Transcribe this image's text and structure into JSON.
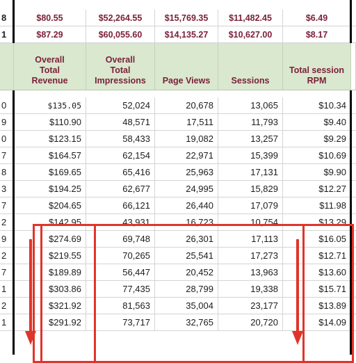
{
  "top_rows": [
    {
      "row_label": "8",
      "values": [
        "$80.55",
        "$52,264.55",
        "$15,769.35",
        "$11,482.45",
        "$6.49"
      ]
    },
    {
      "row_label": "1",
      "values": [
        "$87.29",
        "$60,055.60",
        "$14,135.27",
        "$10,627.00",
        "$8.17"
      ]
    }
  ],
  "headers": [
    "Overall\nTotal\nRevenue",
    "Overall\nTotal\nImpressions",
    "Page Views",
    "Sessions",
    "Total session\nRPM"
  ],
  "rows": [
    {
      "row_label": "0",
      "values": [
        "$135.05",
        "52,024",
        "20,678",
        "13,065",
        "$10.34"
      ]
    },
    {
      "row_label": "9",
      "values": [
        "$110.90",
        "48,571",
        "17,511",
        "11,793",
        "$9.40"
      ]
    },
    {
      "row_label": "0",
      "values": [
        "$123.15",
        "58,433",
        "19,082",
        "13,257",
        "$9.29"
      ]
    },
    {
      "row_label": "7",
      "values": [
        "$164.57",
        "62,154",
        "22,971",
        "15,399",
        "$10.69"
      ]
    },
    {
      "row_label": "8",
      "values": [
        "$169.65",
        "65,416",
        "25,963",
        "17,131",
        "$9.90"
      ]
    },
    {
      "row_label": "3",
      "values": [
        "$194.25",
        "62,677",
        "24,995",
        "15,829",
        "$12.27"
      ]
    },
    {
      "row_label": "7",
      "values": [
        "$204.65",
        "66,121",
        "26,440",
        "17,079",
        "$11.98"
      ]
    },
    {
      "row_label": "2",
      "values": [
        "$142.95",
        "43,931",
        "16,723",
        "10,754",
        "$13.29"
      ]
    },
    {
      "row_label": "9",
      "values": [
        "$274.69",
        "69,748",
        "26,301",
        "17,113",
        "$16.05"
      ]
    },
    {
      "row_label": "2",
      "values": [
        "$219.55",
        "70,265",
        "25,541",
        "17,273",
        "$12.71"
      ]
    },
    {
      "row_label": "7",
      "values": [
        "$189.89",
        "56,447",
        "20,452",
        "13,963",
        "$13.60"
      ]
    },
    {
      "row_label": "1",
      "values": [
        "$303.86",
        "77,435",
        "28,799",
        "19,338",
        "$15.71"
      ]
    },
    {
      "row_label": "2",
      "values": [
        "$321.92",
        "81,563",
        "35,004",
        "23,177",
        "$13.89"
      ]
    },
    {
      "row_label": "1",
      "values": [
        "$291.92",
        "73,717",
        "32,765",
        "20,720",
        "$14.09"
      ]
    }
  ],
  "colors": {
    "header_bg": "#d9e8cf",
    "header_text": "#7b2139",
    "summary_text": "#7b2139",
    "annotation": "#e0342b"
  },
  "annotations": [
    "red-box-highlight",
    "arrow-down-icon",
    "arrow-down-icon"
  ]
}
